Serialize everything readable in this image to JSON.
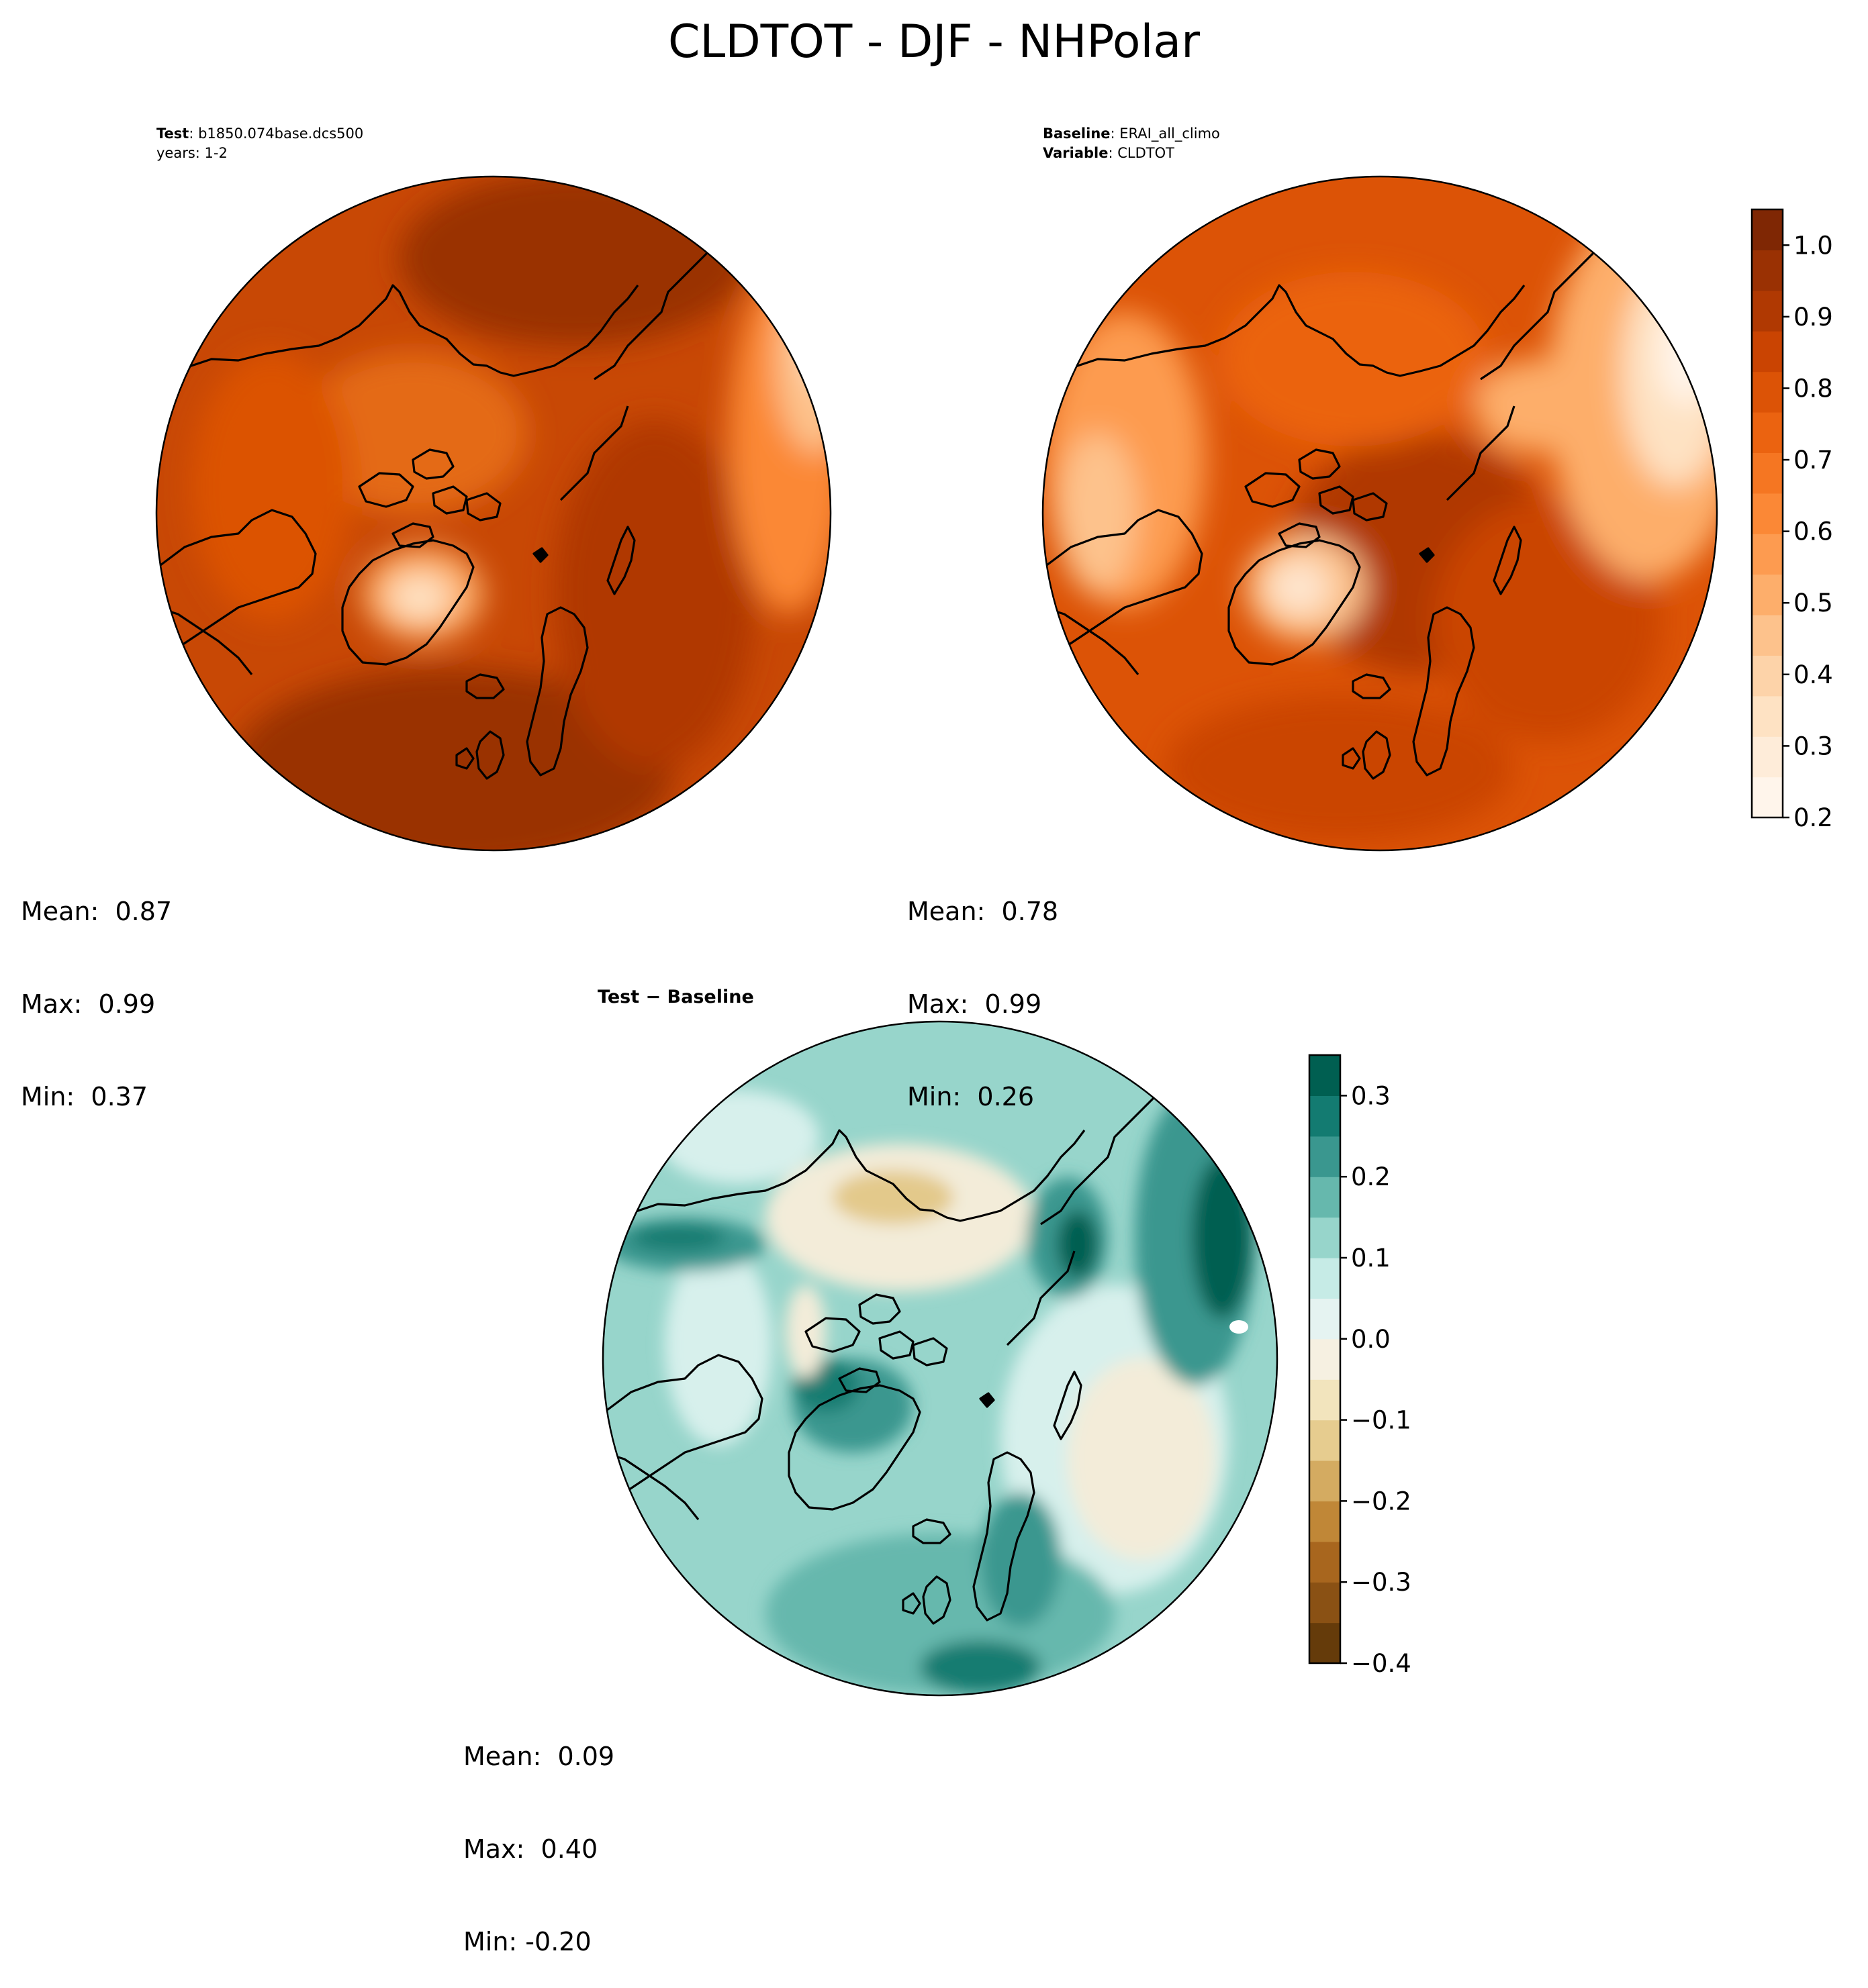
{
  "figure": {
    "title": "CLDTOT - DJF - NHPolar"
  },
  "panels": {
    "test": {
      "label_bold": "Test",
      "label_sep": ": ",
      "label_value": "b1850.074base.dcs500",
      "line2": "years: 1-2",
      "stats": {
        "mean": "Mean:  0.87",
        "max": "Max:  0.99",
        "min": "Min:  0.37"
      }
    },
    "baseline": {
      "label_bold": "Baseline",
      "label_sep": ": ",
      "label_value": "ERAI_all_climo",
      "line2_bold": "Variable",
      "line2_sep": ": ",
      "line2_value": "CLDTOT",
      "stats": {
        "mean": "Mean:  0.78",
        "max": "Max:  0.99",
        "min": "Min:  0.26"
      }
    },
    "diff": {
      "title": "Test − Baseline",
      "stats": {
        "mean": "Mean:  0.09",
        "max": "Max:  0.40",
        "min": "Min: -0.20"
      }
    }
  },
  "colorbars": {
    "cloud": {
      "ticks": [
        "0.2",
        "0.3",
        "0.4",
        "0.5",
        "0.6",
        "0.7",
        "0.8",
        "0.9",
        "1.0"
      ],
      "tick_values": [
        0.2,
        0.3,
        0.4,
        0.5,
        0.6,
        0.7,
        0.8,
        0.9,
        1.0
      ],
      "range": [
        0.2,
        1.05
      ],
      "colors": [
        "#fff5eb",
        "#feecd9",
        "#fee2c3",
        "#fdd3a9",
        "#fdc28c",
        "#fdae6b",
        "#fd9b50",
        "#fb8836",
        "#f57622",
        "#eb6310",
        "#dc5306",
        "#ca4402",
        "#b03902",
        "#9a3103",
        "#7f2704"
      ]
    },
    "difference": {
      "ticks": [
        "−0.4",
        "−0.3",
        "−0.2",
        "−0.1",
        "0.0",
        "0.1",
        "0.2",
        "0.3"
      ],
      "tick_values": [
        -0.4,
        -0.3,
        -0.2,
        -0.1,
        0.0,
        0.1,
        0.2,
        0.3
      ],
      "range": [
        -0.4,
        0.35
      ],
      "colors": [
        "#653b0a",
        "#8a5114",
        "#a8661e",
        "#c08737",
        "#d4ab61",
        "#e6cc8f",
        "#f2e4bd",
        "#f6f0e1",
        "#e5f3f1",
        "#c6ebe6",
        "#97d5cb",
        "#66b8ad",
        "#3a978f",
        "#137b71",
        "#005f51"
      ]
    }
  },
  "map_colors": {
    "cloud_base": "#c84805",
    "cloud_dark": "#9a3103",
    "cloud_mid": "#e46a12",
    "cloud_light": "#fdbf86",
    "cloud_pale": "#fee6cf",
    "diff_base": "#97d5cb",
    "diff_pale": "#d7f0ec",
    "diff_cream": "#f3ecd9",
    "diff_tan": "#e3c98b",
    "diff_teal": "#3a978f",
    "diff_dark": "#005f51",
    "coast": "#000000"
  }
}
